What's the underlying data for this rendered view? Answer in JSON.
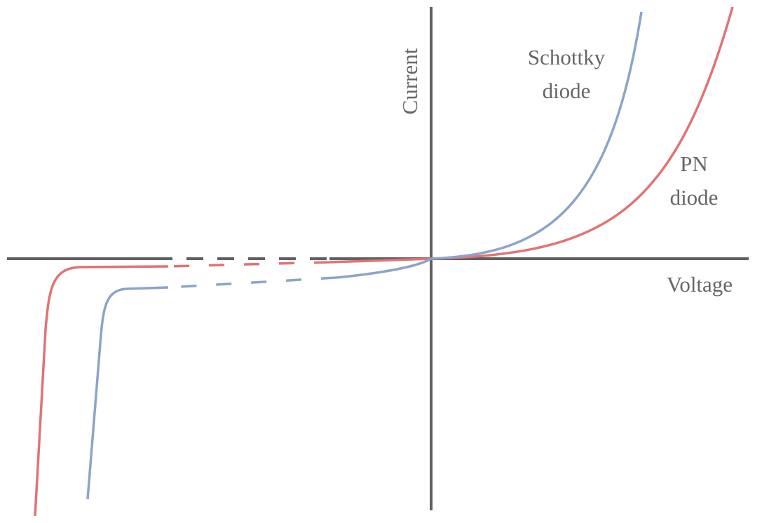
{
  "axes": {
    "x_label": "Voltage",
    "y_label": "Current"
  },
  "curves": [
    {
      "label_line1": "Schottky",
      "label_line2": "diode",
      "color": "#8da4c8"
    },
    {
      "label_line1": "PN",
      "label_line2": "diode",
      "color": "#e07376"
    }
  ],
  "axis_color": "#606060"
}
